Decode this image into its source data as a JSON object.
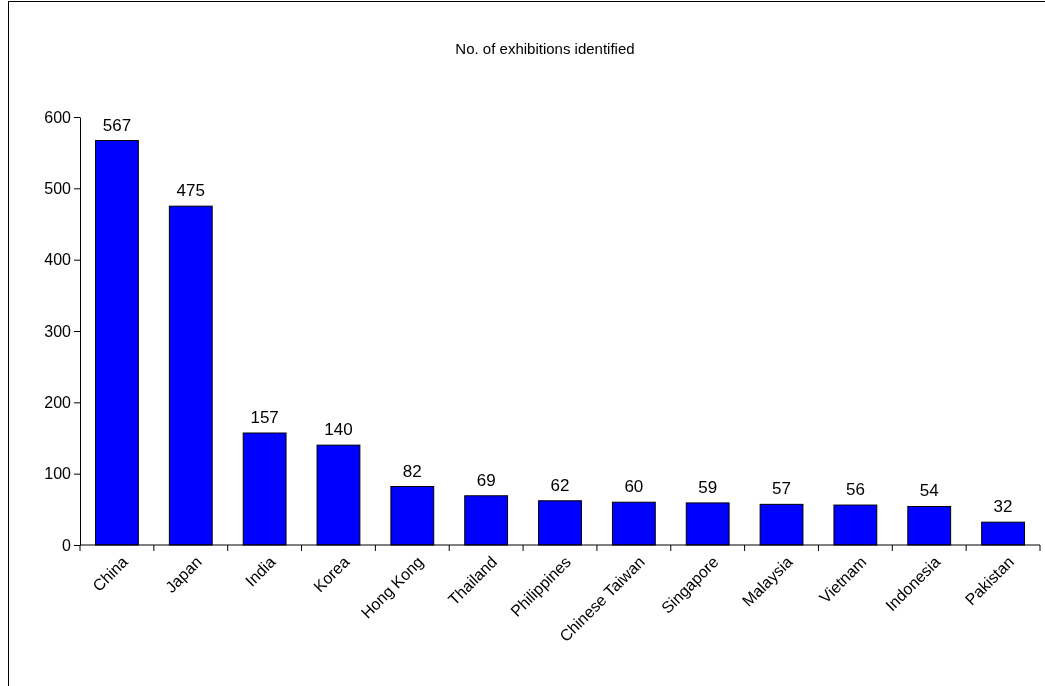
{
  "chart_data": {
    "type": "bar",
    "title": "No. of exhibitions identified",
    "categories": [
      "China",
      "Japan",
      "India",
      "Korea",
      "Hong Kong",
      "Thailand",
      "Philippines",
      "Chinese Taiwan",
      "Singapore",
      "Malaysia",
      "Vietnam",
      "Indonesia",
      "Pakistan"
    ],
    "values": [
      567,
      475,
      157,
      140,
      82,
      69,
      62,
      60,
      59,
      57,
      56,
      54,
      32
    ],
    "color": "#0000ff",
    "ylim": [
      0,
      600
    ],
    "yticks": [
      0,
      100,
      200,
      300,
      400,
      500,
      600
    ],
    "data_labels": true,
    "grid": false
  }
}
